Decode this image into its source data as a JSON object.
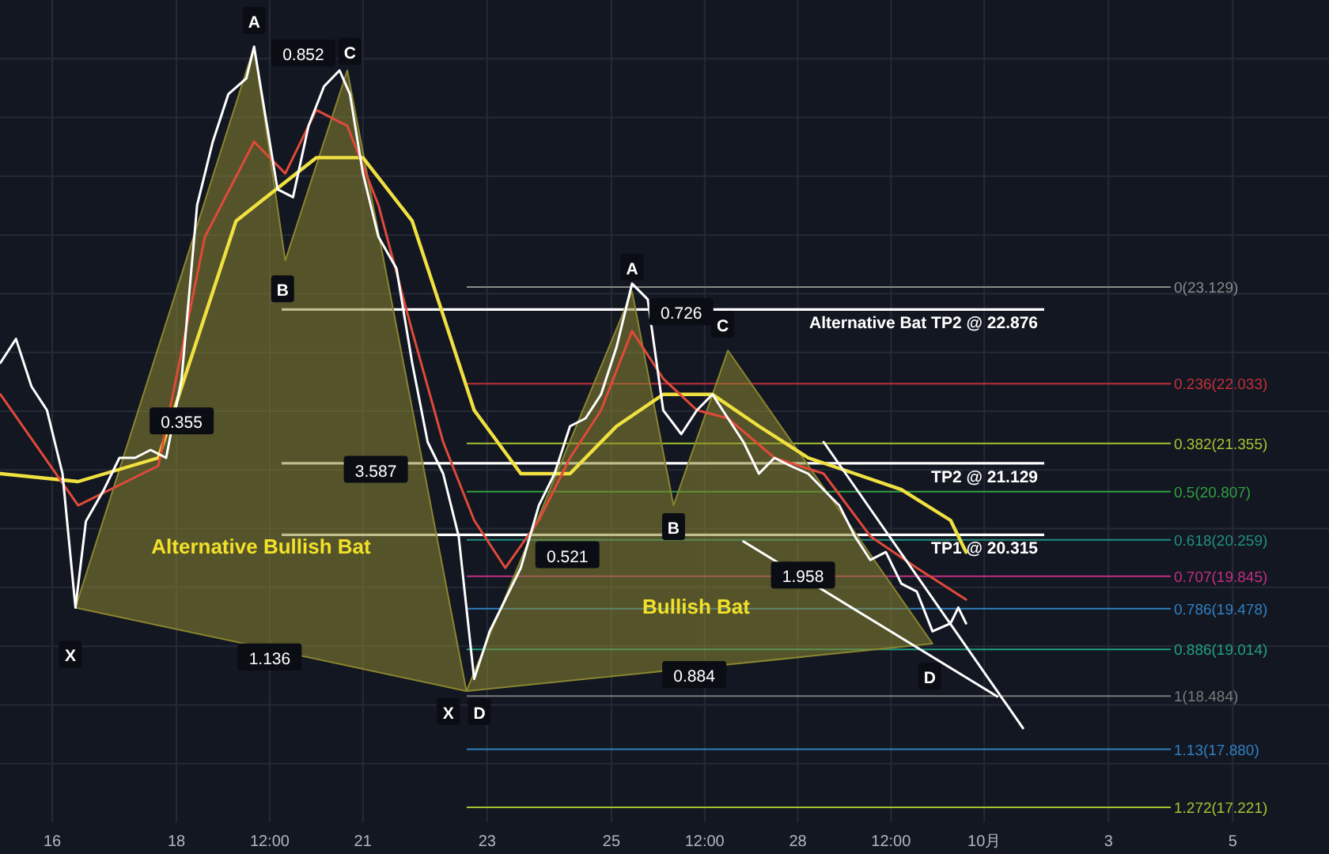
{
  "chart_data": {
    "type": "line",
    "xlim": [
      "--09-15T03:50",
      "--10-06T13:10"
    ],
    "ylim": [
      17.05,
      26.39
    ],
    "tick_labels": "x",
    "xticks": [
      {
        "value": "--09-16",
        "label": "16"
      },
      {
        "value": "--09-18",
        "label": "18"
      },
      {
        "value": "--09-19T12:00",
        "label": "12:00"
      },
      {
        "value": "--09-21",
        "label": "21"
      },
      {
        "value": "--09-23",
        "label": "23"
      },
      {
        "value": "--09-25",
        "label": "25"
      },
      {
        "value": "--09-26T12:00",
        "label": "12:00"
      },
      {
        "value": "--09-28",
        "label": "28"
      },
      {
        "value": "--09-29T12:00",
        "label": "12:00"
      },
      {
        "value": "--10-01",
        "label": "10月"
      },
      {
        "value": "--10-03",
        "label": "3"
      },
      {
        "value": "--10-05",
        "label": "5"
      }
    ],
    "grid": true,
    "series": [
      {
        "type": "area",
        "color": "#8a8530",
        "x": [
          "--09-16T09:00",
          "--09-19T06:00",
          "--09-19T18:00",
          "--09-20T18:00",
          "--09-22T16:00"
        ],
        "values": [
          19.49,
          25.86,
          23.43,
          25.59,
          18.54
        ]
      },
      {
        "type": "area",
        "color": "#8a8530",
        "x": [
          "--09-22T16:00",
          "--09-25T08:00",
          "--09-26T00:00",
          "--09-26T21:00",
          "--09-30T04:00"
        ],
        "values": [
          18.54,
          23.08,
          20.65,
          22.41,
          19.08
        ]
      },
      {
        "type": "line",
        "color": "#f0e040",
        "x": [
          "--09-15T04:00",
          "--09-16T10:00",
          "--09-17T17:00",
          "--09-18T23:00",
          "--09-20T06:00",
          "--09-21T00:00",
          "--09-21T19:00",
          "--09-22T07:00",
          "--09-22T19:00",
          "--09-23T13:00",
          "--09-24T08:00",
          "--09-25T02:00",
          "--09-25T20:00",
          "--09-26T15:00",
          "--09-27T09:00",
          "--09-28T04:00",
          "--09-28T22:00",
          "--09-29T16:00",
          "--09-30T11:00",
          "--09-30T17:00"
        ],
        "values": [
          21.01,
          20.92,
          21.19,
          23.88,
          24.6,
          24.6,
          23.88,
          22.81,
          21.73,
          21.01,
          21.01,
          21.55,
          21.91,
          21.91,
          21.55,
          21.19,
          21.01,
          20.83,
          20.48,
          20.12
        ]
      },
      {
        "type": "line",
        "color": "#e04a3a",
        "x": [
          "--09-15T04:00",
          "--09-16T10:00",
          "--09-17T17:00",
          "--09-18T11:00",
          "--09-19T06:00",
          "--09-19T18:00",
          "--09-20T06:00",
          "--09-20T18:00",
          "--09-21T06:00",
          "--09-21T19:00",
          "--09-22T07:00",
          "--09-22T19:00",
          "--09-23T07:00",
          "--09-23T20:00",
          "--09-24T08:00",
          "--09-24T20:00",
          "--09-25T08:00",
          "--09-25T20:00",
          "--09-26T09:00",
          "--09-26T21:00",
          "--09-27T15:00",
          "--09-28T10:00",
          "--09-29T04:00",
          "--09-29T22:00",
          "--09-30T17:00"
        ],
        "values": [
          21.91,
          20.65,
          21.1,
          23.7,
          24.78,
          24.42,
          25.14,
          24.96,
          24.06,
          22.63,
          21.37,
          20.48,
          19.94,
          20.48,
          21.19,
          21.73,
          22.63,
          22.09,
          21.73,
          21.64,
          21.19,
          21.01,
          20.3,
          19.94,
          19.58
        ]
      },
      {
        "type": "line",
        "color": "#ffffff",
        "x": [
          "--09-15T04:00",
          "--09-15T10:00",
          "--09-15T16:00",
          "--09-15T22:00",
          "--09-16T04:00",
          "--09-16T09:00",
          "--09-16T13:00",
          "--09-16T20:00",
          "--09-17T02:00",
          "--09-17T08:00",
          "--09-17T14:00",
          "--09-17T20:00",
          "--09-18T02:00",
          "--09-18T08:00",
          "--09-18T14:00",
          "--09-18T20:00",
          "--09-19T03:00",
          "--09-19T06:00",
          "--09-19T09:00",
          "--09-19T15:00",
          "--09-19T21:00",
          "--09-20T03:00",
          "--09-20T09:00",
          "--09-20T15:00",
          "--09-20T19:00",
          "--09-21T00:00",
          "--09-21T06:00",
          "--09-21T13:00",
          "--09-21T19:00",
          "--09-22T01:00",
          "--09-22T07:00",
          "--09-22T13:00",
          "--09-22T19:00",
          "--09-23T01:00",
          "--09-23T07:00",
          "--09-23T13:00",
          "--09-23T20:00",
          "--09-24T02:00",
          "--09-24T08:00",
          "--09-24T14:00",
          "--09-24T20:00",
          "--09-25T02:00",
          "--09-25T08:00",
          "--09-25T14:00",
          "--09-25T20:00",
          "--09-26T03:00",
          "--09-26T09:00",
          "--09-26T15:00",
          "--09-26T21:00",
          "--09-27T03:00",
          "--09-27T09:00",
          "--09-27T15:00",
          "--09-27T21:00",
          "--09-28T04:00",
          "--09-28T10:00",
          "--09-28T16:00",
          "--09-28T22:00",
          "--09-29T04:00",
          "--09-29T10:00",
          "--09-29T16:00",
          "--09-29T22:00",
          "--09-30T04:00",
          "--09-30T11:00",
          "--09-30T14:00",
          "--09-30T17:00"
        ],
        "values": [
          22.27,
          22.54,
          22.0,
          21.73,
          21.01,
          19.49,
          20.47,
          20.83,
          21.19,
          21.19,
          21.28,
          21.19,
          22.09,
          24.06,
          24.78,
          25.32,
          25.5,
          25.86,
          25.32,
          24.24,
          24.15,
          24.96,
          25.41,
          25.59,
          25.32,
          24.42,
          23.7,
          23.34,
          22.27,
          21.37,
          21.01,
          20.3,
          18.68,
          19.22,
          19.58,
          19.94,
          20.65,
          21.01,
          21.55,
          21.64,
          21.91,
          22.45,
          23.17,
          22.99,
          21.73,
          21.46,
          21.73,
          21.91,
          21.64,
          21.37,
          21.01,
          21.19,
          21.1,
          21.01,
          20.83,
          20.65,
          20.3,
          20.03,
          20.12,
          19.76,
          19.67,
          19.22,
          19.31,
          19.49,
          19.31
        ]
      },
      {
        "type": "line",
        "color": "#ffffff",
        "x": [
          "--09-28T10:00",
          "--10-01T15:00"
        ],
        "values": [
          21.37,
          18.12
        ]
      },
      {
        "type": "line",
        "color": "#ffffff",
        "x": [
          "--09-27T03:00",
          "--10-01T05:00"
        ],
        "values": [
          20.24,
          18.48
        ]
      }
    ],
    "ref_lines": [
      {
        "axis": "y",
        "value": 23.129,
        "label": "0(23.129)",
        "color": "#8a8a8a"
      },
      {
        "axis": "y",
        "value": 22.033,
        "label": "0.236(22.033)",
        "color": "#c0303a"
      },
      {
        "axis": "y",
        "value": 21.355,
        "label": "0.382(21.355)",
        "color": "#a8c030"
      },
      {
        "axis": "y",
        "value": 20.807,
        "label": "0.5(20.807)",
        "color": "#30a040"
      },
      {
        "axis": "y",
        "value": 20.259,
        "label": "0.618(20.259)",
        "color": "#209080"
      },
      {
        "axis": "y",
        "value": 19.845,
        "label": "0.707(19.845)",
        "color": "#c03080"
      },
      {
        "axis": "y",
        "value": 19.478,
        "label": "0.786(19.478)",
        "color": "#3080c0"
      },
      {
        "axis": "y",
        "value": 19.014,
        "label": "0.886(19.014)",
        "color": "#20a080"
      },
      {
        "axis": "y",
        "value": 18.484,
        "label": "1(18.484)",
        "color": "#7a7a7a"
      },
      {
        "axis": "y",
        "value": 17.88,
        "label": "1.13(17.880)",
        "color": "#3080c0"
      },
      {
        "axis": "y",
        "value": 17.221,
        "label": "1.272(17.221)",
        "color": "#a8c030"
      },
      {
        "axis": "y",
        "value": 22.876,
        "label": "Alternative Bat TP2 @ 22.876",
        "color": "#ffffff"
      },
      {
        "axis": "y",
        "value": 21.129,
        "label": "TP2 @ 21.129",
        "color": "#ffffff"
      },
      {
        "axis": "y",
        "value": 20.315,
        "label": "TP1 @ 20.315",
        "color": "#ffffff"
      }
    ],
    "annotations": [
      {
        "text": "X",
        "x": "--09-16T07:00",
        "y": 18.95
      },
      {
        "text": "A",
        "x": "--09-19T06:00",
        "y": 26.15
      },
      {
        "text": "B",
        "x": "--09-19T17:00",
        "y": 23.1
      },
      {
        "text": "C",
        "x": "--09-20T19:00",
        "y": 25.8
      },
      {
        "text": "X",
        "x": "--09-22T09:00",
        "y": 18.3
      },
      {
        "text": "D",
        "x": "--09-22T21:00",
        "y": 18.3
      },
      {
        "text": "A",
        "x": "--09-25T08:00",
        "y": 23.35
      },
      {
        "text": "B",
        "x": "--09-26T00:00",
        "y": 20.4
      },
      {
        "text": "C",
        "x": "--09-26T19:00",
        "y": 22.7
      },
      {
        "text": "D",
        "x": "--09-30T03:00",
        "y": 18.7
      },
      {
        "text": "0.355",
        "x": "--09-18T02:00",
        "y": 21.6
      },
      {
        "text": "0.852",
        "x": "--09-20T01:00",
        "y": 25.78
      },
      {
        "text": "3.587",
        "x": "--09-21T05:00",
        "y": 21.05
      },
      {
        "text": "1.136",
        "x": "--09-19T12:00",
        "y": 18.92
      },
      {
        "text": "0.521",
        "x": "--09-24T07:00",
        "y": 20.08
      },
      {
        "text": "0.726",
        "x": "--09-26T03:00",
        "y": 22.84
      },
      {
        "text": "0.884",
        "x": "--09-26T08:00",
        "y": 18.72
      },
      {
        "text": "1.958",
        "x": "--09-28T02:00",
        "y": 19.85
      },
      "Alternative Bullish Bat",
      "Bullish Bat"
    ]
  }
}
